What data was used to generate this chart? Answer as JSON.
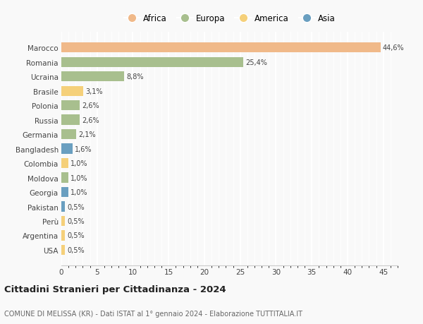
{
  "categories": [
    "Marocco",
    "Romania",
    "Ucraina",
    "Brasile",
    "Polonia",
    "Russia",
    "Germania",
    "Bangladesh",
    "Colombia",
    "Moldova",
    "Georgia",
    "Pakistan",
    "Perù",
    "Argentina",
    "USA"
  ],
  "values": [
    44.6,
    25.4,
    8.8,
    3.1,
    2.6,
    2.6,
    2.1,
    1.6,
    1.0,
    1.0,
    1.0,
    0.5,
    0.5,
    0.5,
    0.5
  ],
  "labels": [
    "44,6%",
    "25,4%",
    "8,8%",
    "3,1%",
    "2,6%",
    "2,6%",
    "2,1%",
    "1,6%",
    "1,0%",
    "1,0%",
    "1,0%",
    "0,5%",
    "0,5%",
    "0,5%",
    "0,5%"
  ],
  "colors": [
    "#f0b989",
    "#a8bf8e",
    "#a8bf8e",
    "#f5d07a",
    "#a8bf8e",
    "#a8bf8e",
    "#a8bf8e",
    "#6a9fc0",
    "#f5d07a",
    "#a8bf8e",
    "#6a9fc0",
    "#6a9fc0",
    "#f5d07a",
    "#f5d07a",
    "#f5d07a"
  ],
  "legend_labels": [
    "Africa",
    "Europa",
    "America",
    "Asia"
  ],
  "legend_colors": [
    "#f0b989",
    "#a8bf8e",
    "#f5d07a",
    "#6a9fc0"
  ],
  "title": "Cittadini Stranieri per Cittadinanza - 2024",
  "subtitle": "COMUNE DI MELISSA (KR) - Dati ISTAT al 1° gennaio 2024 - Elaborazione TUTTITALIA.IT",
  "xlim": [
    0,
    47
  ],
  "xticks": [
    0,
    5,
    10,
    15,
    20,
    25,
    30,
    35,
    40,
    45
  ],
  "background_color": "#f9f9f9",
  "grid_color": "#ffffff"
}
